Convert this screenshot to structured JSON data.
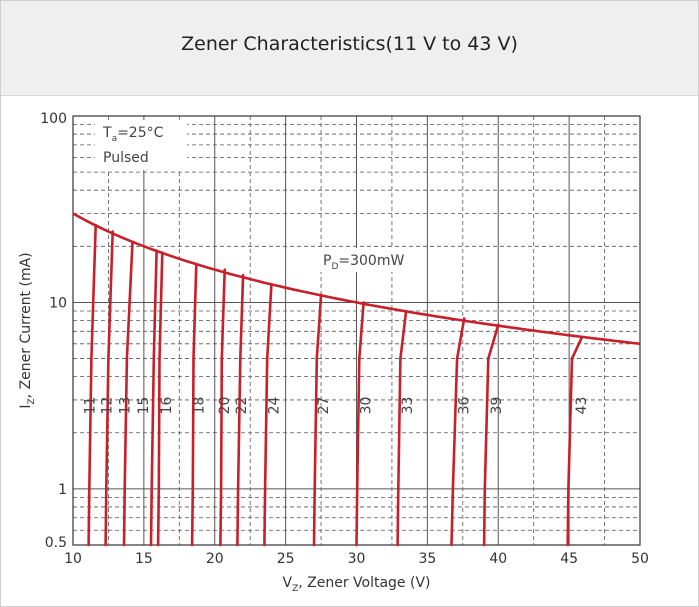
{
  "header": {
    "title": "Zener Characteristics(11 V to 43 V)"
  },
  "chart_data": {
    "type": "line",
    "title": "Zener Characteristics(11 V to 43 V)",
    "xlabel": {
      "main": "V",
      "sub": "Z",
      "rest": ", Zener Voltage (V)"
    },
    "ylabel": {
      "main": "I",
      "sub": "Z",
      "rest": ", Zener Current (mA)"
    },
    "xlim": [
      10,
      50
    ],
    "ylim": [
      0.5,
      100
    ],
    "yscale": "log",
    "x_ticks": [
      10,
      15,
      20,
      25,
      30,
      35,
      40,
      45,
      50
    ],
    "y_ticks": [
      0.5,
      1,
      10,
      100
    ],
    "y_tick_labels": [
      "0.5",
      "1",
      "10",
      "100"
    ],
    "grid": true,
    "colors": {
      "curve": "#c8202a",
      "grid_major": "#555555",
      "grid_minor": "#555555"
    },
    "annotations": {
      "ta": {
        "main": "T",
        "sub": "a",
        "rest": "=25°C"
      },
      "pulsed": "Pulsed",
      "pd": {
        "main": "P",
        "sub": "D",
        "rest": "=300mW"
      }
    },
    "power_limit": {
      "name": "P_D=300mW",
      "power_mw": 300,
      "x_range": [
        10,
        50
      ]
    },
    "series": [
      {
        "name": "11",
        "points": [
          [
            11.1,
            0.5
          ],
          [
            11.15,
            1
          ],
          [
            11.3,
            5
          ],
          [
            11.6,
            26
          ]
        ]
      },
      {
        "name": "12",
        "points": [
          [
            12.3,
            0.5
          ],
          [
            12.35,
            1
          ],
          [
            12.5,
            5
          ],
          [
            12.8,
            24
          ]
        ]
      },
      {
        "name": "13",
        "points": [
          [
            13.6,
            0.5
          ],
          [
            13.65,
            1
          ],
          [
            13.8,
            5
          ],
          [
            14.2,
            21
          ]
        ]
      },
      {
        "name": "15",
        "points": [
          [
            15.5,
            0.5
          ],
          [
            15.55,
            1
          ],
          [
            15.7,
            5
          ],
          [
            15.9,
            19
          ]
        ]
      },
      {
        "name": "16",
        "points": [
          [
            16.0,
            0.5
          ],
          [
            16.05,
            1
          ],
          [
            16.1,
            5
          ],
          [
            16.3,
            18.5
          ]
        ]
      },
      {
        "name": "18",
        "points": [
          [
            18.4,
            0.5
          ],
          [
            18.45,
            1
          ],
          [
            18.5,
            5
          ],
          [
            18.7,
            16
          ]
        ]
      },
      {
        "name": "20",
        "points": [
          [
            20.4,
            0.5
          ],
          [
            20.45,
            1
          ],
          [
            20.5,
            5
          ],
          [
            20.7,
            15
          ]
        ]
      },
      {
        "name": "22",
        "points": [
          [
            21.6,
            0.5
          ],
          [
            21.65,
            1
          ],
          [
            21.8,
            5
          ],
          [
            22.0,
            14
          ]
        ]
      },
      {
        "name": "24",
        "points": [
          [
            23.5,
            0.5
          ],
          [
            23.55,
            1
          ],
          [
            23.7,
            5
          ],
          [
            24.0,
            12.5
          ]
        ]
      },
      {
        "name": "27",
        "points": [
          [
            27.0,
            0.5
          ],
          [
            27.05,
            1
          ],
          [
            27.2,
            5
          ],
          [
            27.5,
            11
          ]
        ]
      },
      {
        "name": "30",
        "points": [
          [
            30.0,
            0.5
          ],
          [
            30.05,
            1
          ],
          [
            30.2,
            5
          ],
          [
            30.5,
            10
          ]
        ]
      },
      {
        "name": "33",
        "points": [
          [
            32.9,
            0.5
          ],
          [
            32.95,
            1
          ],
          [
            33.1,
            5
          ],
          [
            33.5,
            9
          ]
        ]
      },
      {
        "name": "36",
        "points": [
          [
            36.7,
            0.5
          ],
          [
            36.8,
            1
          ],
          [
            37.1,
            5
          ],
          [
            37.6,
            8.2
          ]
        ]
      },
      {
        "name": "39",
        "points": [
          [
            39.0,
            0.5
          ],
          [
            39.05,
            1
          ],
          [
            39.3,
            5
          ],
          [
            40.0,
            7.6
          ]
        ]
      },
      {
        "name": "43",
        "points": [
          [
            44.9,
            0.5
          ],
          [
            44.95,
            1
          ],
          [
            45.2,
            5
          ],
          [
            45.9,
            6.5
          ]
        ]
      }
    ]
  }
}
